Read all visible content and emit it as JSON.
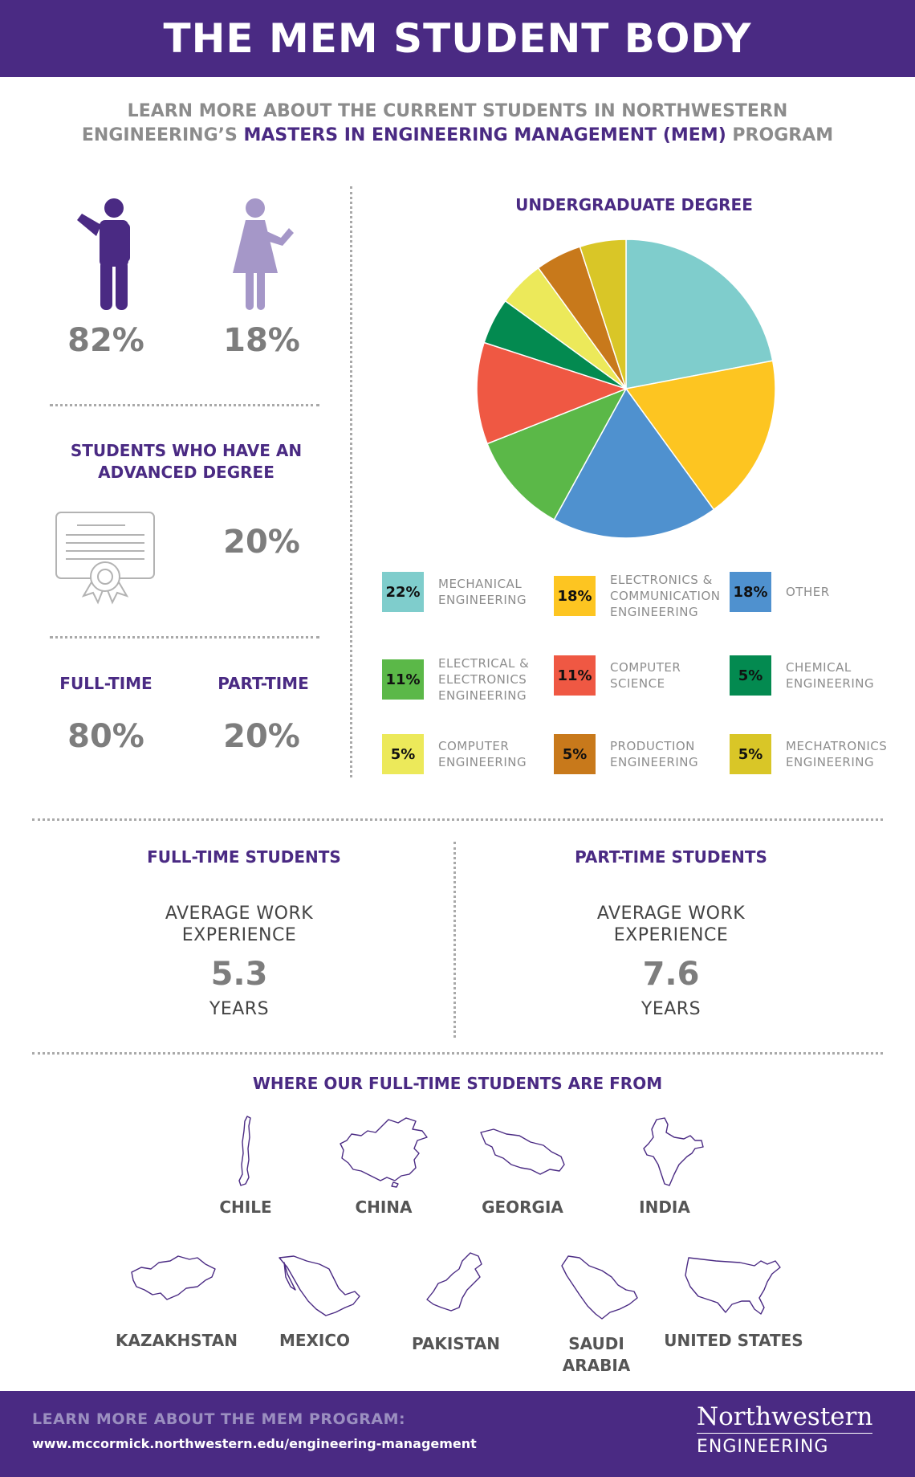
{
  "header": {
    "title": "THE MEM STUDENT BODY"
  },
  "subtitle": {
    "line1": "LEARN MORE ABOUT THE CURRENT STUDENTS IN NORTHWESTERN",
    "line2_pre": "ENGINEERING’S ",
    "line2_highlight": "MASTERS IN ENGINEERING MANAGEMENT (MEM)",
    "line2_post": " PROGRAM"
  },
  "gender": {
    "male_pct": "82%",
    "female_pct": "18%",
    "male_value": 82,
    "female_value": 18,
    "male_color": "#4a2a83",
    "female_color": "#a597c8"
  },
  "advanced_degree": {
    "title_line1": "STUDENTS WHO HAVE AN",
    "title_line2": "ADVANCED DEGREE",
    "pct": "20%",
    "value": 20,
    "icon": "certificate-icon"
  },
  "enrollment": {
    "full_time_label": "FULL-TIME",
    "part_time_label": "PART-TIME",
    "full_time_pct": "80%",
    "part_time_pct": "20%"
  },
  "chart_data": {
    "type": "pie",
    "title": "UNDERGRADUATE DEGREE",
    "slices": [
      {
        "label_lines": [
          "MECHANICAL",
          "ENGINEERING"
        ],
        "value": 22,
        "display": "22%",
        "color": "#7fcdcc"
      },
      {
        "label_lines": [
          "ELECTRONICS &",
          "COMMUNICATION",
          "ENGINEERING"
        ],
        "value": 18,
        "display": "18%",
        "color": "#fdc521"
      },
      {
        "label_lines": [
          "OTHER"
        ],
        "value": 18,
        "display": "18%",
        "color": "#4f91cf"
      },
      {
        "label_lines": [
          "ELECTRICAL &",
          "ELECTRONICS",
          "ENGINEERING"
        ],
        "value": 11,
        "display": "11%",
        "color": "#5bb848"
      },
      {
        "label_lines": [
          "COMPUTER",
          "SCIENCE"
        ],
        "value": 11,
        "display": "11%",
        "color": "#ef5843"
      },
      {
        "label_lines": [
          "CHEMICAL",
          "ENGINEERING"
        ],
        "value": 5,
        "display": "5%",
        "color": "#038a50"
      },
      {
        "label_lines": [
          "COMPUTER",
          "ENGINEERING"
        ],
        "value": 5,
        "display": "5%",
        "color": "#ece95a"
      },
      {
        "label_lines": [
          "PRODUCTION",
          "ENGINEERING"
        ],
        "value": 5,
        "display": "5%",
        "color": "#c8791b"
      },
      {
        "label_lines": [
          "MECHATRONICS",
          "ENGINEERING"
        ],
        "value": 5,
        "display": "5%",
        "color": "#d9c627"
      }
    ]
  },
  "work_experience": {
    "full_time": {
      "title": "FULL-TIME STUDENTS",
      "label_line1": "AVERAGE WORK",
      "label_line2": "EXPERIENCE",
      "value": "5.3",
      "unit": "YEARS"
    },
    "part_time": {
      "title": "PART-TIME STUDENTS",
      "label_line1": "AVERAGE WORK",
      "label_line2": "EXPERIENCE",
      "value": "7.6",
      "unit": "YEARS"
    }
  },
  "origins": {
    "title": "WHERE OUR FULL-TIME STUDENTS ARE FROM",
    "row1": [
      {
        "name": "CHILE",
        "icon": "chile-map-icon"
      },
      {
        "name": "CHINA",
        "icon": "china-map-icon"
      },
      {
        "name": "GEORGIA",
        "icon": "georgia-map-icon"
      },
      {
        "name": "INDIA",
        "icon": "india-map-icon"
      }
    ],
    "row2": [
      {
        "name": "KAZAKHSTAN",
        "icon": "kazakhstan-map-icon"
      },
      {
        "name": "MEXICO",
        "icon": "mexico-map-icon"
      },
      {
        "name": "PAKISTAN",
        "icon": "pakistan-map-icon"
      },
      {
        "name_line1": "SAUDI",
        "name_line2": "ARABIA",
        "icon": "saudi-arabia-map-icon"
      },
      {
        "name": "UNITED STATES",
        "icon": "united-states-map-icon"
      }
    ]
  },
  "footer": {
    "cta": "LEARN MORE ABOUT THE MEM PROGRAM:",
    "url": "www.mccormick.northwestern.edu/engineering-management",
    "logo_line1": "Northwestern",
    "logo_line2": "ENGINEERING"
  },
  "colors": {
    "brand_purple": "#4a2a83",
    "text_grey": "#7d7d7d",
    "divider": "#a9a9a9"
  }
}
